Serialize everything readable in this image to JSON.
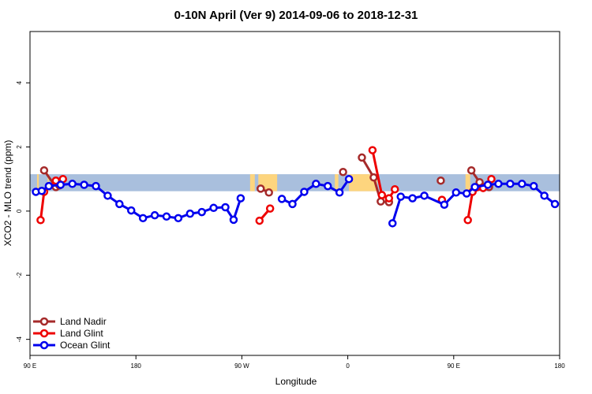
{
  "chart_data": {
    "type": "line",
    "title": "0-10N April (Ver 9)   2014-09-06 to 2018-12-31",
    "xlabel": "Longitude",
    "ylabel": "XCO2 - MLO trend (ppm)",
    "xlim": [
      90,
      540
    ],
    "ylim": [
      -4.5,
      5.6
    ],
    "xticks": [
      {
        "value": 90,
        "label": "90 E"
      },
      {
        "value": 180,
        "label": "180"
      },
      {
        "value": 270,
        "label": "90 W"
      },
      {
        "value": 360,
        "label": "0"
      },
      {
        "value": 450,
        "label": "90 E"
      },
      {
        "value": 540,
        "label": "180"
      }
    ],
    "yticks": [
      {
        "value": -4,
        "label": "-4"
      },
      {
        "value": -2,
        "label": "-2"
      },
      {
        "value": 0,
        "label": "0"
      },
      {
        "value": 2,
        "label": "2"
      },
      {
        "value": 4,
        "label": "4"
      }
    ],
    "grid": false,
    "legend_position": "bottom-left",
    "background_band": {
      "ocean_color": "#a9bfdd",
      "land_color": "#fdd57e",
      "y_range": [
        0.62,
        1.15
      ],
      "land_segments": [
        [
          96,
          97.5
        ],
        [
          105,
          106
        ],
        [
          277,
          281
        ],
        [
          284,
          300
        ],
        [
          349,
          352
        ],
        [
          361,
          385
        ],
        [
          460,
          464
        ]
      ]
    },
    "series": [
      {
        "name": "Land Nadir",
        "color": "#a52a2a",
        "segments": [
          [
            [
              102,
              1.27
            ],
            [
              112,
              0.75
            ],
            [
              115,
              0.8
            ]
          ],
          [
            [
              286,
              0.7
            ],
            [
              293,
              0.58
            ]
          ],
          [
            [
              356,
              1.22
            ]
          ],
          [
            [
              372,
              1.67
            ],
            [
              382,
              1.05
            ],
            [
              388,
              0.3
            ],
            [
              395,
              0.28
            ]
          ],
          [
            [
              439,
              0.95
            ]
          ],
          [
            [
              465,
              1.27
            ],
            [
              472,
              0.9
            ],
            [
              475,
              0.75
            ],
            [
              480,
              0.75
            ]
          ]
        ]
      },
      {
        "name": "Land Glint",
        "color": "#ee0000",
        "segments": [
          [
            [
              99,
              -0.28
            ],
            [
              102,
              0.6
            ],
            [
              112,
              0.95
            ],
            [
              118,
              1.0
            ]
          ],
          [
            [
              285,
              -0.3
            ],
            [
              294,
              0.08
            ]
          ],
          [
            [
              381,
              1.9
            ],
            [
              389,
              0.5
            ],
            [
              395,
              0.4
            ],
            [
              400,
              0.68
            ]
          ],
          [
            [
              440,
              0.35
            ]
          ],
          [
            [
              462,
              -0.28
            ],
            [
              466,
              0.6
            ],
            [
              475,
              0.72
            ],
            [
              482,
              1.0
            ]
          ]
        ]
      },
      {
        "name": "Ocean Glint",
        "color": "#0000ee",
        "segments": [
          [
            [
              95,
              0.6
            ],
            [
              100,
              0.63
            ],
            [
              106,
              0.78
            ],
            [
              116,
              0.82
            ],
            [
              126,
              0.85
            ],
            [
              136,
              0.82
            ],
            [
              146,
              0.78
            ],
            [
              156,
              0.48
            ],
            [
              166,
              0.22
            ],
            [
              176,
              0.02
            ],
            [
              186,
              -0.22
            ],
            [
              196,
              -0.13
            ],
            [
              206,
              -0.17
            ],
            [
              216,
              -0.22
            ],
            [
              226,
              -0.08
            ],
            [
              236,
              -0.03
            ],
            [
              246,
              0.1
            ],
            [
              256,
              0.12
            ],
            [
              263,
              -0.27
            ],
            [
              269,
              0.4
            ]
          ],
          [
            [
              304,
              0.38
            ],
            [
              313,
              0.22
            ],
            [
              323,
              0.6
            ],
            [
              333,
              0.85
            ],
            [
              343,
              0.78
            ],
            [
              353,
              0.58
            ],
            [
              361,
              1.0
            ]
          ],
          [
            [
              398,
              -0.38
            ],
            [
              405,
              0.45
            ],
            [
              415,
              0.4
            ],
            [
              425,
              0.48
            ],
            [
              442,
              0.2
            ],
            [
              452,
              0.58
            ],
            [
              461,
              0.55
            ],
            [
              468,
              0.75
            ],
            [
              479,
              0.82
            ],
            [
              488,
              0.85
            ],
            [
              498,
              0.85
            ],
            [
              508,
              0.85
            ],
            [
              518,
              0.78
            ],
            [
              527,
              0.48
            ],
            [
              536,
              0.22
            ]
          ]
        ]
      }
    ]
  }
}
